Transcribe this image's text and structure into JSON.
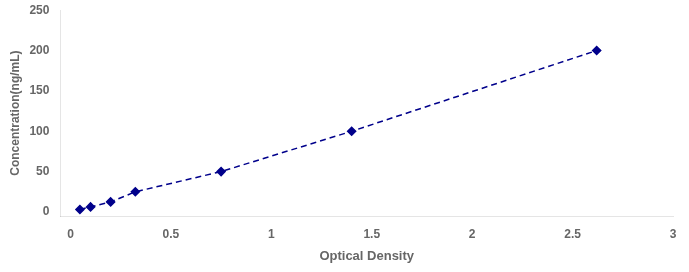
{
  "chart_data": {
    "type": "line",
    "x": [
      0.047,
      0.1,
      0.2,
      0.323,
      0.75,
      1.4,
      2.62
    ],
    "values": [
      3.125,
      6.25,
      12.5,
      25.0,
      50.0,
      100.0,
      200.0
    ],
    "color": "#00008B",
    "marker": "diamond",
    "line_style": "dashed",
    "xlabel": "Optical Density",
    "ylabel": "Concentration(ng/mL)",
    "xlim": [
      -0.05,
      3.0
    ],
    "ylim": [
      -5,
      250
    ],
    "xticks": [
      0,
      0.5,
      1,
      1.5,
      2,
      2.5,
      3
    ],
    "yticks": [
      0,
      50,
      100,
      150,
      200,
      250
    ],
    "grid": false
  }
}
